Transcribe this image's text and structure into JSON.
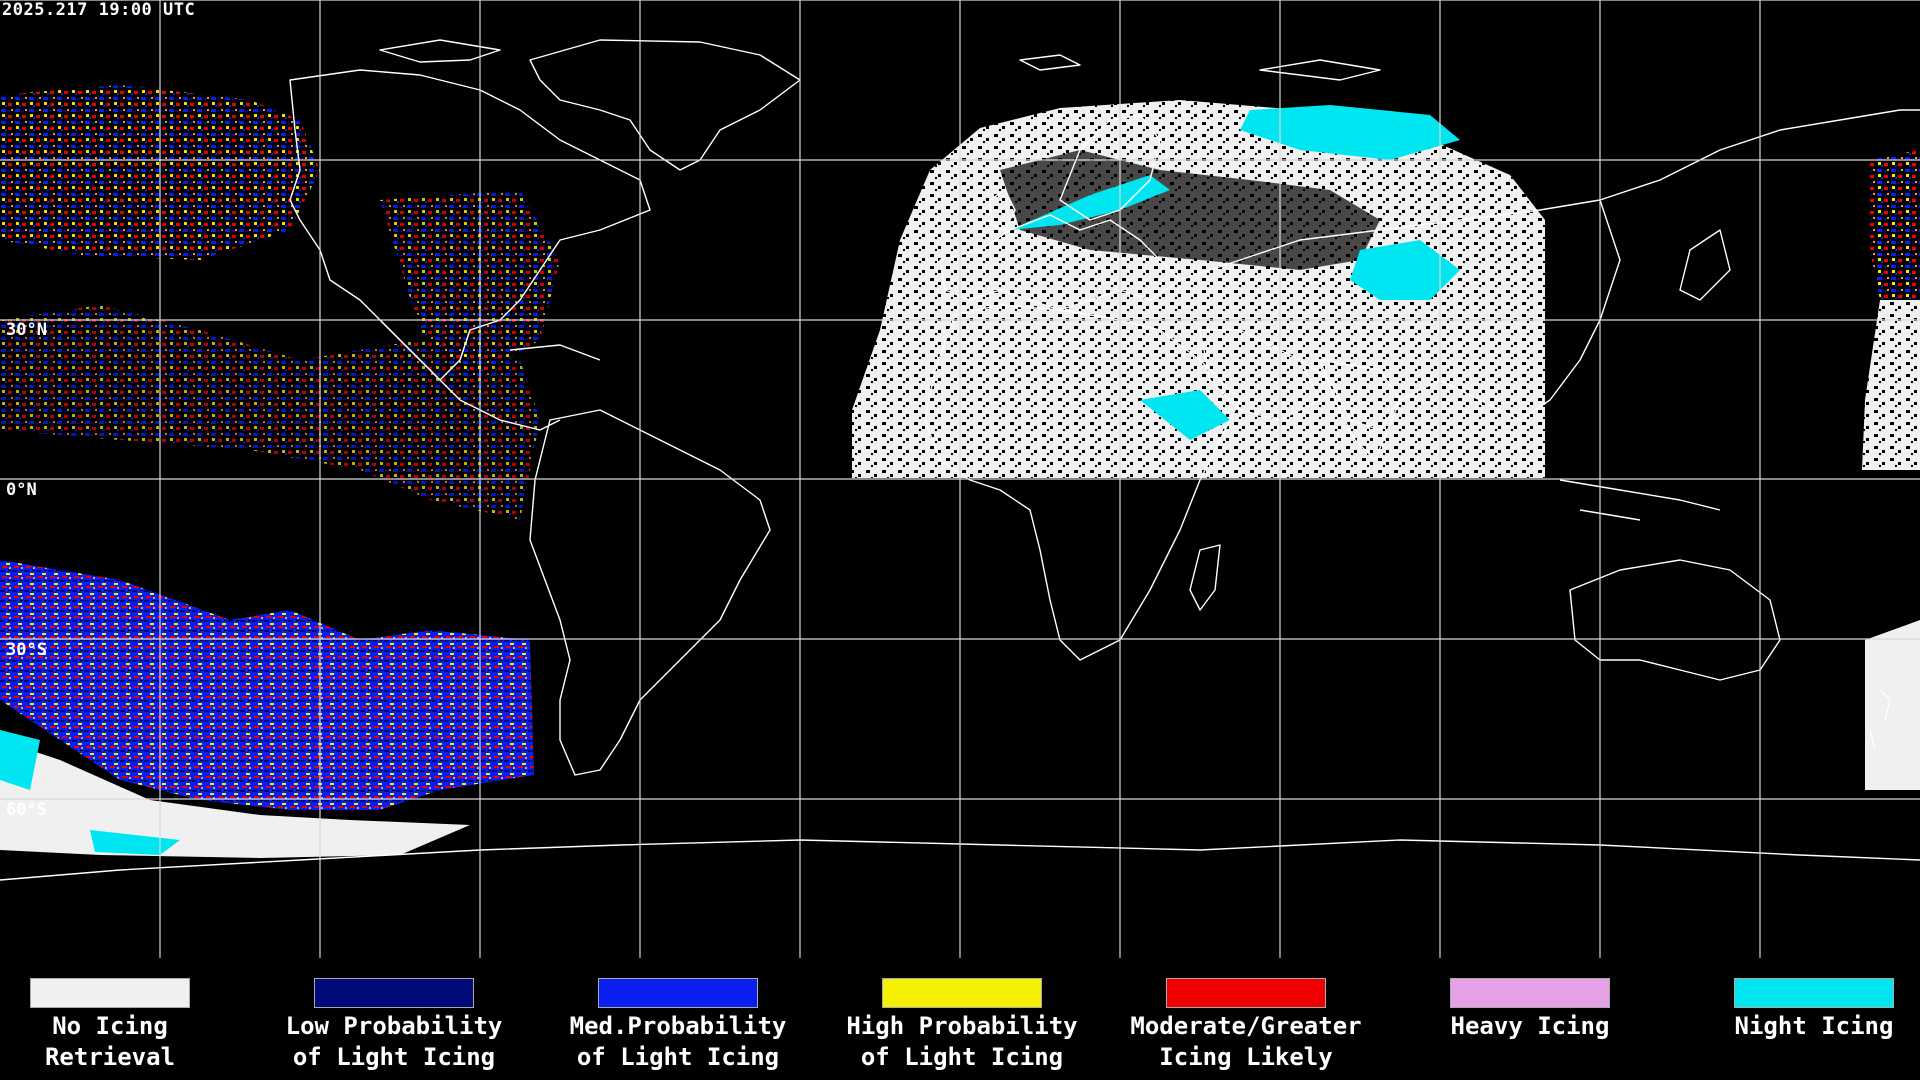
{
  "header": {
    "timestamp": "2025.217 19:00 UTC"
  },
  "map": {
    "projection": "equirectangular",
    "latitude_labels": [
      "30°N",
      "0°N",
      "30°S",
      "60°S"
    ],
    "background_color": "#000000",
    "grid_color": "#ffffff",
    "coastline_color": "#ffffff"
  },
  "legend": {
    "items": [
      {
        "line1": "No Icing",
        "line2": "Retrieval",
        "color": "#f0f0f0"
      },
      {
        "line1": "Low Probability",
        "line2": "of Light Icing",
        "color": "#000a78"
      },
      {
        "line1": "Med.Probability",
        "line2": "of Light Icing",
        "color": "#0a1ef0"
      },
      {
        "line1": "High Probability",
        "line2": "of Light Icing",
        "color": "#f5f000"
      },
      {
        "line1": "Moderate/Greater",
        "line2": "Icing Likely",
        "color": "#f00000"
      },
      {
        "line1": "Heavy Icing",
        "line2": "",
        "color": "#e6a0e6"
      },
      {
        "line1": "Night Icing",
        "line2": "",
        "color": "#00e6f0"
      }
    ]
  }
}
